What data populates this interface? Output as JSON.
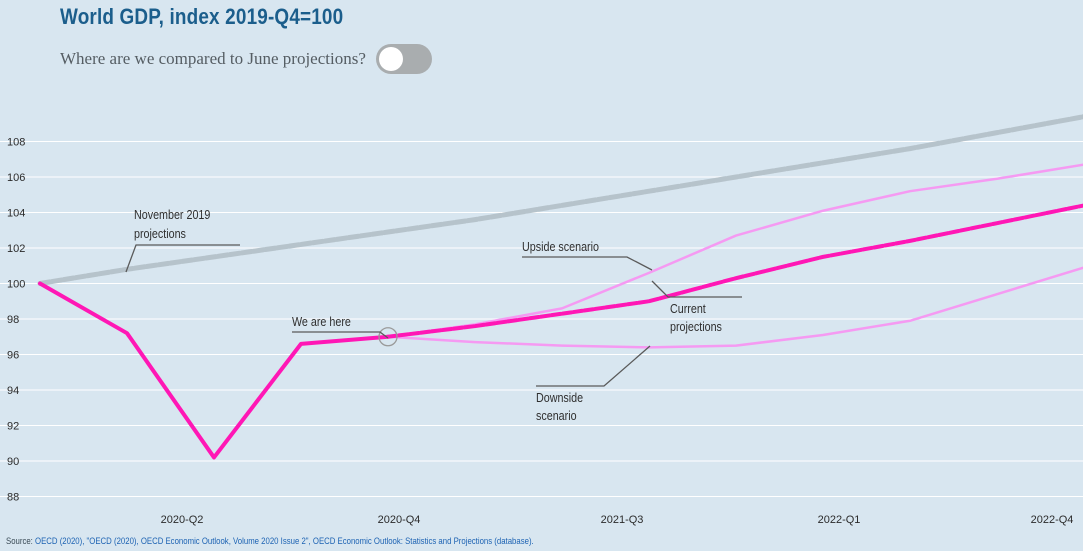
{
  "header": {
    "title": "World GDP, index 2019-Q4=100",
    "subtitle": "Where are we compared to June projections?"
  },
  "toggle": {
    "state": "off"
  },
  "source": {
    "prefix": "Source: ",
    "text": "OECD (2020), \"OECD (2020), OECD Economic Outlook, Volume 2020 Issue 2\", OECD Economic Outlook: Statistics and Projections (database)."
  },
  "colors": {
    "background": "#d8e6f0",
    "grid": "#ffffff",
    "actual": "#ff17b5",
    "current": "#ff17b5",
    "scenario": "#f59af2",
    "nov2019": "#b6c3cb",
    "annotation": "#5a5a5a",
    "title": "#1b5e8c"
  },
  "chart_data": {
    "type": "line",
    "title": "World GDP, index 2019-Q4=100",
    "xlabel": "",
    "ylabel": "",
    "ylim": [
      87,
      109.5
    ],
    "yticks": [
      88,
      90,
      92,
      94,
      96,
      98,
      100,
      102,
      104,
      106,
      108
    ],
    "x": [
      "2019-Q4",
      "2020-Q1",
      "2020-Q2",
      "2020-Q3",
      "2020-Q4",
      "2021-Q1",
      "2021-Q2",
      "2021-Q3",
      "2021-Q4",
      "2022-Q1",
      "2022-Q2",
      "2022-Q3",
      "2022-Q4"
    ],
    "xtick_labels": [
      "2020-Q2",
      "2020-Q4",
      "2021-Q3",
      "2022-Q1",
      "2022-Q4"
    ],
    "grid": "horizontal",
    "series": [
      {
        "key": "actual",
        "values": [
          100,
          97.2,
          90.2,
          96.6,
          97.0,
          null,
          null,
          null,
          null,
          null,
          null,
          null,
          null
        ]
      },
      {
        "key": "current",
        "values": [
          null,
          null,
          null,
          null,
          97.0,
          97.6,
          98.3,
          99.0,
          100.3,
          101.5,
          102.4,
          103.4,
          104.4
        ]
      },
      {
        "key": "upside",
        "values": [
          null,
          null,
          null,
          null,
          97.0,
          97.7,
          98.6,
          100.6,
          102.7,
          104.1,
          105.2,
          105.9,
          106.7
        ]
      },
      {
        "key": "downside",
        "values": [
          null,
          null,
          null,
          null,
          97.0,
          96.7,
          96.5,
          96.4,
          96.5,
          97.1,
          97.9,
          99.4,
          100.9
        ]
      },
      {
        "key": "nov2019",
        "values": [
          100,
          100.8,
          101.5,
          102.2,
          102.9,
          103.6,
          104.4,
          105.2,
          106.0,
          106.8,
          107.6,
          108.5,
          109.4
        ]
      }
    ],
    "annotations": [
      {
        "text": [
          "November 2019",
          "projections"
        ]
      },
      {
        "text": [
          "We are here"
        ]
      },
      {
        "text": [
          "Upside scenario"
        ]
      },
      {
        "text": [
          "Current",
          "projections"
        ]
      },
      {
        "text": [
          "Downside",
          "scenario"
        ]
      }
    ]
  }
}
